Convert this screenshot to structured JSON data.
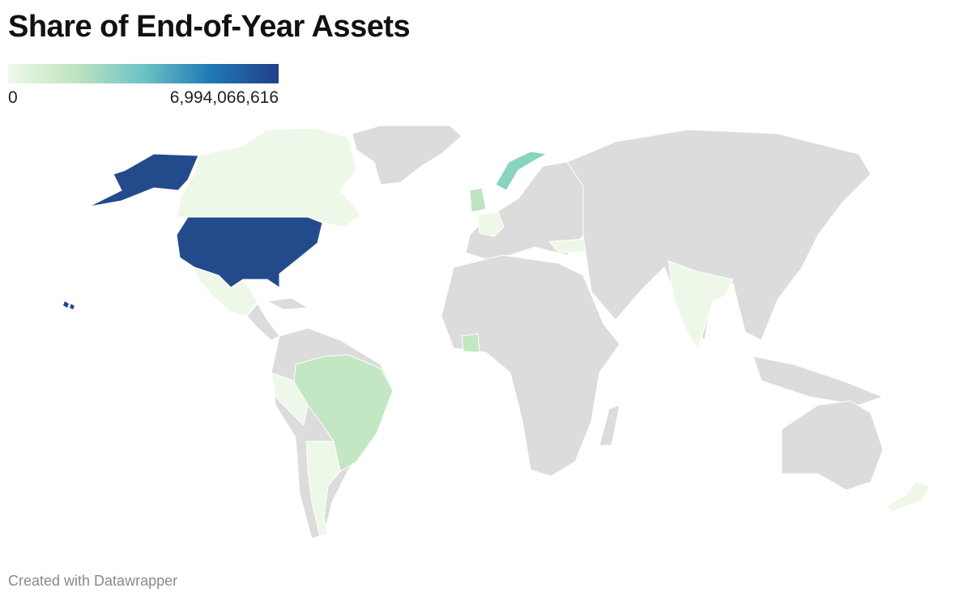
{
  "title": "Share of End-of-Year Assets",
  "legend": {
    "lim": [
      0,
      6994066616
    ],
    "ticks": [
      0,
      {
        "value": 6994066616,
        "label": "6,994,066,616"
      }
    ],
    "colors": [
      "#eef8e8",
      "#bfe4c0",
      "#6cc3c4",
      "#1f78b4",
      "#233f88"
    ]
  },
  "footer": "Created with Datawrapper"
}
